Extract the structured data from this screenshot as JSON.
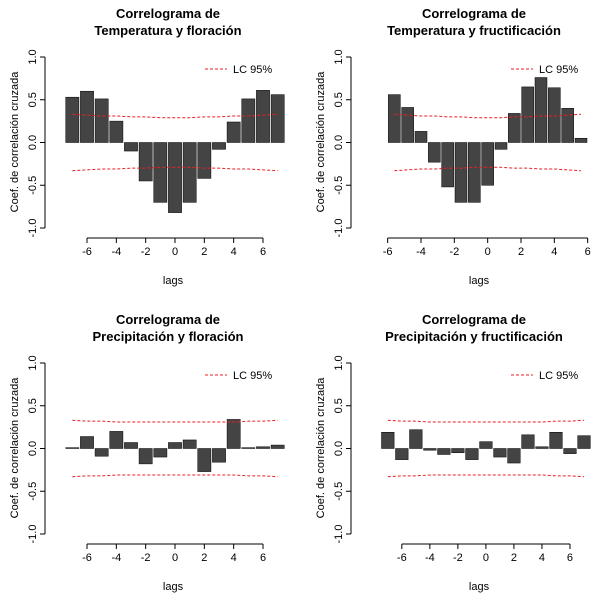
{
  "chart_data": [
    {
      "type": "bar",
      "title": "Correlograma de\nTemperatura y floración",
      "xlabel": "lags",
      "ylabel": "Coef. de correlación cruzada",
      "color": "#444444",
      "x": [
        -7,
        -6,
        -5,
        -4,
        -3,
        -2,
        -1,
        0,
        1,
        2,
        3,
        4,
        5,
        6,
        7
      ],
      "values": [
        0.53,
        0.6,
        0.51,
        0.25,
        -0.1,
        -0.45,
        -0.7,
        -0.82,
        -0.7,
        -0.42,
        -0.08,
        0.24,
        0.51,
        0.61,
        0.56
      ],
      "ci": {
        "name": "LC 95%",
        "color": "#e8202a",
        "upper": [
          0.33,
          0.32,
          0.31,
          0.31,
          0.3,
          0.3,
          0.29,
          0.29,
          0.29,
          0.3,
          0.3,
          0.31,
          0.31,
          0.32,
          0.33
        ],
        "lower": [
          -0.33,
          -0.32,
          -0.31,
          -0.31,
          -0.3,
          -0.3,
          -0.29,
          -0.29,
          -0.29,
          -0.3,
          -0.3,
          -0.31,
          -0.31,
          -0.32,
          -0.33
        ]
      },
      "xlim": [
        -7.5,
        7.5
      ],
      "xticks": [
        -6,
        -4,
        -2,
        0,
        2,
        4,
        6
      ],
      "ylim": [
        -1,
        1
      ],
      "yticks": [
        {
          "value": -1,
          "label": "-1.0"
        },
        {
          "value": -0.5,
          "label": "-0.5"
        },
        {
          "value": 0,
          "label": "0.0"
        },
        {
          "value": 0.5,
          "label": "0.5"
        },
        {
          "value": 1,
          "label": "1.0"
        }
      ],
      "legend": "top-right"
    },
    {
      "type": "bar",
      "title": "Correlograma de\nTemperatura y fructificación",
      "xlabel": "lags",
      "ylabel": "Coef. de correlación cruzada",
      "color": "#444444",
      "x": [
        -5.6,
        -4.8,
        -4,
        -3.2,
        -2.4,
        -1.6,
        -0.8,
        0,
        0.8,
        1.6,
        2.4,
        3.2,
        4,
        4.8,
        5.6
      ],
      "values": [
        0.56,
        0.41,
        0.13,
        -0.23,
        -0.52,
        -0.7,
        -0.7,
        -0.5,
        -0.08,
        0.34,
        0.65,
        0.76,
        0.64,
        0.4,
        0.05
      ],
      "ci": {
        "name": "LC 95%",
        "color": "#e8202a",
        "upper": [
          0.33,
          0.32,
          0.31,
          0.31,
          0.3,
          0.3,
          0.29,
          0.29,
          0.29,
          0.3,
          0.3,
          0.31,
          0.31,
          0.32,
          0.33
        ],
        "lower": [
          -0.33,
          -0.32,
          -0.31,
          -0.31,
          -0.3,
          -0.3,
          -0.29,
          -0.29,
          -0.29,
          -0.3,
          -0.3,
          -0.31,
          -0.31,
          -0.32,
          -0.33
        ]
      },
      "xlim": [
        -7,
        6.2
      ],
      "xticks": [
        -6,
        -4,
        -2,
        0,
        2,
        4,
        6
      ],
      "ylim": [
        -1,
        1
      ],
      "yticks": [
        {
          "value": -1,
          "label": "-1.0"
        },
        {
          "value": -0.5,
          "label": "-0.5"
        },
        {
          "value": 0,
          "label": "0.0"
        },
        {
          "value": 0.5,
          "label": "0.5"
        },
        {
          "value": 1,
          "label": "1.0"
        }
      ],
      "legend": "top-right"
    },
    {
      "type": "bar",
      "title": "Correlograma de\nPrecipitación y floración",
      "xlabel": "lags",
      "ylabel": "Coef. de correlación cruzada",
      "color": "#444444",
      "x": [
        -7,
        -6,
        -5,
        -4,
        -3,
        -2,
        -1,
        0,
        1,
        2,
        3,
        4,
        5,
        6,
        7
      ],
      "values": [
        0.01,
        0.14,
        -0.09,
        0.2,
        0.07,
        -0.18,
        -0.1,
        0.07,
        0.1,
        -0.27,
        -0.16,
        0.34,
        0.01,
        0.02,
        0.04
      ],
      "ci": {
        "name": "LC 95%",
        "color": "#e8202a",
        "upper": [
          0.33,
          0.32,
          0.32,
          0.31,
          0.31,
          0.31,
          0.31,
          0.31,
          0.31,
          0.31,
          0.31,
          0.31,
          0.32,
          0.32,
          0.33
        ],
        "lower": [
          -0.33,
          -0.32,
          -0.32,
          -0.31,
          -0.31,
          -0.31,
          -0.31,
          -0.31,
          -0.31,
          -0.31,
          -0.31,
          -0.31,
          -0.32,
          -0.32,
          -0.33
        ]
      },
      "xlim": [
        -7.5,
        7.5
      ],
      "xticks": [
        -6,
        -4,
        -2,
        0,
        2,
        4,
        6
      ],
      "ylim": [
        -1,
        1
      ],
      "yticks": [
        {
          "value": -1,
          "label": "-1.0"
        },
        {
          "value": -0.5,
          "label": "-0.5"
        },
        {
          "value": 0,
          "label": "0.0"
        },
        {
          "value": 0.5,
          "label": "0.5"
        },
        {
          "value": 1,
          "label": "1.0"
        }
      ],
      "legend": "top-right"
    },
    {
      "type": "bar",
      "title": "Correlograma de\nPrecipitación y fructificación",
      "xlabel": "lags",
      "ylabel": "Coef. de correlación cruzada",
      "color": "#444444",
      "x": [
        -7,
        -6,
        -5,
        -4,
        -3,
        -2,
        -1,
        0,
        1,
        2,
        3,
        4,
        5,
        6,
        7
      ],
      "values": [
        0.19,
        -0.13,
        0.22,
        -0.02,
        -0.07,
        -0.05,
        -0.13,
        0.08,
        -0.1,
        -0.17,
        0.16,
        0.02,
        0.19,
        -0.06,
        0.15
      ],
      "ci": {
        "name": "LC 95%",
        "color": "#e8202a",
        "upper": [
          0.33,
          0.32,
          0.32,
          0.31,
          0.31,
          0.31,
          0.31,
          0.31,
          0.31,
          0.31,
          0.31,
          0.31,
          0.32,
          0.32,
          0.33
        ],
        "lower": [
          -0.33,
          -0.32,
          -0.32,
          -0.31,
          -0.31,
          -0.31,
          -0.31,
          -0.31,
          -0.31,
          -0.31,
          -0.31,
          -0.31,
          -0.32,
          -0.32,
          -0.33
        ]
      },
      "xlim": [
        -8.2,
        7.5
      ],
      "xticks": [
        -6,
        -4,
        -2,
        0,
        2,
        4,
        6
      ],
      "ylim": [
        -1,
        1
      ],
      "yticks": [
        {
          "value": -1,
          "label": "-1.0"
        },
        {
          "value": -0.5,
          "label": "-0.5"
        },
        {
          "value": 0,
          "label": "0.0"
        },
        {
          "value": 0.5,
          "label": "0.5"
        },
        {
          "value": 1,
          "label": "1.0"
        }
      ],
      "legend": "top-right"
    }
  ]
}
